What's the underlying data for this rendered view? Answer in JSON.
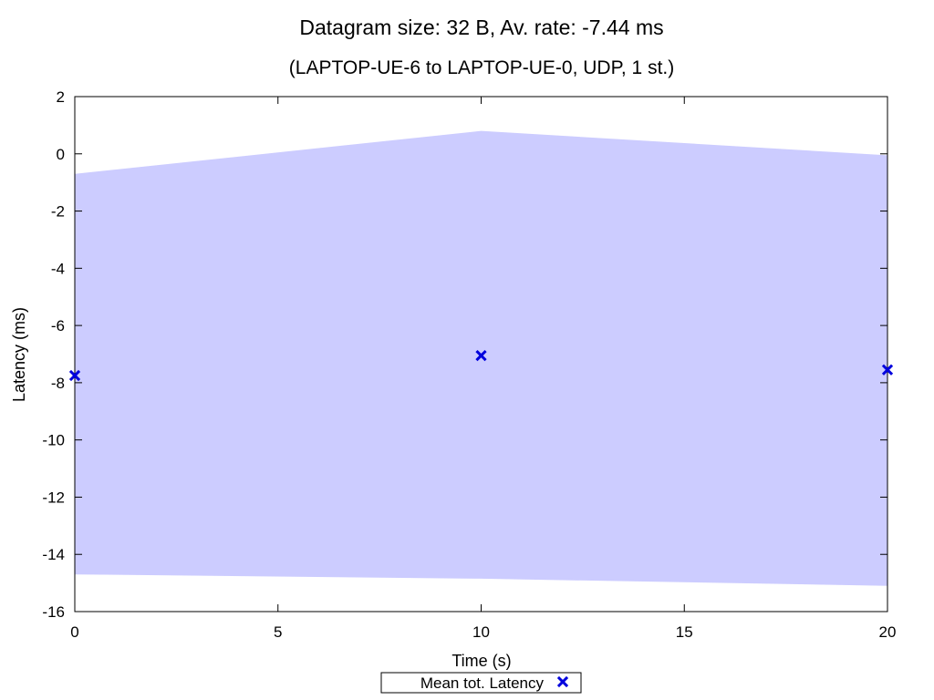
{
  "chart_data": {
    "type": "scatter",
    "title": "Datagram size: 32 B, Av. rate: -7.44 ms",
    "subtitle": "(LAPTOP-UE-6 to LAPTOP-UE-0, UDP, 1 st.)",
    "xlabel": "Time (s)",
    "ylabel": "Latency (ms)",
    "xlim": [
      0,
      20
    ],
    "ylim": [
      -16,
      2
    ],
    "xticks": [
      0,
      5,
      10,
      15,
      20
    ],
    "yticks": [
      -16,
      -14,
      -12,
      -10,
      -8,
      -6,
      -4,
      -2,
      0,
      2
    ],
    "grid": false,
    "legend_position": "bottom-center",
    "series": [
      {
        "name": "Mean tot. Latency",
        "marker": "x",
        "color": "#0000dd",
        "x": [
          0,
          10,
          20
        ],
        "y": [
          -7.75,
          -7.05,
          -7.55
        ]
      }
    ],
    "band": {
      "color": "#ccccff",
      "x": [
        0,
        10,
        20
      ],
      "upper": [
        -0.7,
        0.8,
        -0.05
      ],
      "lower": [
        -14.7,
        -14.85,
        -15.1
      ]
    }
  }
}
